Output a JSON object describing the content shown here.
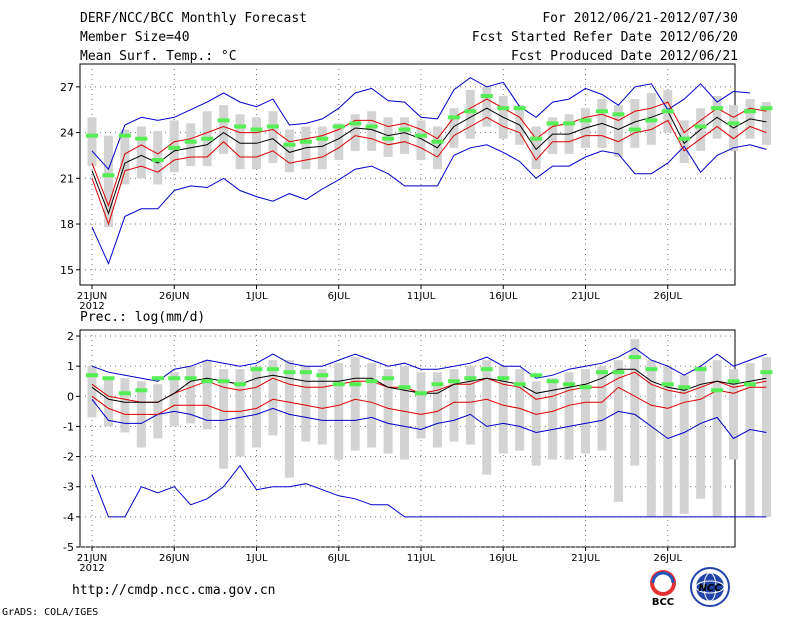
{
  "header": {
    "title": "DERF/NCC/BCC Monthly Forecast",
    "member_size": "Member Size=40",
    "variable_top": "Mean Surf. Temp.: °C",
    "for_range": "For 2012/06/21-2012/07/30",
    "started": "Fcst Started Refer Date 2012/06/20",
    "produced": "Fcst Produced Date 2012/06/21"
  },
  "footer": {
    "url": "http://cmdp.ncc.cma.gov.cn",
    "grads": "GrADS: COLA/IGES",
    "logo_bcc": "BCC",
    "logo_ncc": "NCC"
  },
  "colors": {
    "envelope": "#0000cc",
    "spread": "#dd0000",
    "mean": "#000000",
    "obs": "#55ee55",
    "box": "#d3d3d3"
  },
  "chart_data": [
    {
      "type": "line",
      "title": "Mean Surf. Temp.: °C",
      "ylim": [
        14,
        28.5
      ],
      "yticks": [
        15,
        18,
        21,
        24,
        27
      ],
      "x_tick_labels": [
        "21JUN",
        "26JUN",
        "1JUL",
        "6JUL",
        "11JUL",
        "16JUL",
        "21JUL",
        "26JUL"
      ],
      "x_year_label": "2012",
      "days": 40,
      "series": [
        {
          "name": "max",
          "values": [
            22.8,
            21.6,
            24.5,
            25.0,
            24.8,
            25.0,
            25.5,
            26.0,
            26.6,
            26.0,
            25.7,
            26.2,
            24.5,
            24.6,
            24.9,
            25.6,
            26.6,
            26.9,
            26.1,
            26.0,
            25.0,
            24.9,
            26.8,
            27.6,
            27.0,
            27.3,
            25.7,
            25.0,
            26.0,
            26.2,
            26.9,
            26.5,
            25.8,
            27.0,
            27.2,
            25.5,
            26.2,
            27.2,
            26.0,
            26.7,
            26.6
          ]
        },
        {
          "name": "upper",
          "values": [
            22.0,
            19.2,
            22.6,
            23.2,
            22.6,
            23.4,
            23.6,
            24.0,
            24.4,
            24.0,
            24.0,
            24.2,
            23.4,
            23.6,
            23.8,
            24.2,
            24.8,
            24.8,
            24.4,
            24.6,
            24.2,
            23.6,
            25.0,
            25.6,
            26.2,
            25.6,
            25.0,
            23.6,
            24.4,
            24.6,
            25.0,
            25.2,
            24.8,
            25.4,
            25.6,
            26.0,
            24.0,
            24.8,
            25.6,
            25.0,
            25.6,
            25.4
          ]
        },
        {
          "name": "mean",
          "values": [
            21.5,
            18.7,
            22.0,
            22.5,
            22.0,
            22.8,
            23.0,
            23.2,
            24.0,
            23.3,
            23.3,
            23.6,
            22.7,
            23.0,
            23.1,
            23.6,
            24.3,
            24.2,
            23.8,
            24.0,
            23.6,
            23.0,
            24.4,
            25.0,
            25.6,
            25.0,
            24.5,
            22.9,
            23.9,
            23.9,
            24.3,
            24.6,
            24.2,
            24.7,
            25.0,
            25.4,
            23.3,
            24.2,
            25.0,
            24.3,
            24.9,
            24.7
          ]
        },
        {
          "name": "lower",
          "values": [
            21.0,
            18.0,
            21.5,
            21.8,
            21.4,
            22.2,
            22.4,
            22.4,
            23.4,
            22.4,
            22.4,
            22.8,
            22.0,
            22.2,
            22.4,
            23.0,
            23.8,
            23.6,
            23.2,
            23.4,
            23.0,
            22.4,
            23.8,
            24.4,
            25.0,
            24.4,
            24.0,
            22.2,
            23.4,
            23.4,
            23.8,
            23.8,
            23.4,
            24.0,
            24.2,
            24.8,
            22.8,
            23.6,
            24.4,
            23.6,
            24.4,
            24.0
          ]
        },
        {
          "name": "min",
          "values": [
            17.8,
            15.4,
            18.5,
            19.0,
            19.0,
            20.2,
            20.5,
            20.4,
            21.0,
            20.2,
            19.8,
            19.5,
            20.0,
            19.6,
            20.3,
            20.9,
            21.6,
            21.8,
            21.3,
            20.5,
            20.5,
            20.5,
            22.5,
            23.0,
            23.2,
            22.7,
            22.1,
            21.0,
            21.8,
            21.8,
            22.4,
            22.8,
            22.6,
            21.3,
            21.3,
            22.0,
            23.1,
            21.4,
            22.5,
            23.0,
            23.2,
            22.9
          ]
        },
        {
          "name": "box_top",
          "values": [
            25.0,
            23.8,
            24.2,
            24.4,
            24.1,
            24.8,
            24.6,
            25.4,
            25.8,
            25.2,
            25.0,
            25.4,
            24.2,
            24.4,
            24.4,
            24.6,
            25.2,
            25.4,
            25.0,
            25.0,
            24.8,
            24.4,
            25.6,
            26.8,
            27.0,
            26.4,
            25.8,
            24.4,
            25.0,
            25.2,
            25.6,
            26.2,
            25.8,
            26.2,
            26.6,
            26.8,
            24.8,
            25.6,
            26.4,
            25.8,
            26.2,
            26.0
          ]
        },
        {
          "name": "box_bottom",
          "values": [
            21.8,
            17.8,
            20.6,
            21.0,
            20.6,
            21.4,
            21.8,
            21.8,
            22.6,
            21.6,
            21.6,
            22.0,
            21.4,
            21.6,
            21.6,
            22.2,
            22.8,
            22.8,
            22.4,
            22.6,
            22.2,
            21.6,
            23.0,
            23.6,
            24.4,
            23.6,
            23.2,
            21.6,
            22.6,
            22.6,
            23.0,
            23.0,
            22.4,
            23.0,
            23.2,
            24.0,
            22.0,
            22.8,
            23.6,
            22.8,
            23.6,
            23.2
          ]
        },
        {
          "name": "obs",
          "values": [
            23.8,
            21.2,
            23.8,
            23.6,
            22.2,
            23.0,
            23.4,
            23.6,
            24.8,
            24.4,
            24.2,
            24.4,
            23.2,
            23.4,
            23.6,
            24.4,
            24.6,
            24.4,
            23.6,
            24.2,
            23.8,
            23.4,
            25.0,
            25.4,
            26.4,
            25.6,
            25.6,
            23.6,
            24.6,
            24.6,
            24.8,
            25.4,
            25.2,
            24.2,
            24.8,
            25.4,
            23.6,
            24.4,
            25.6,
            24.6,
            25.4,
            25.6
          ]
        }
      ]
    },
    {
      "type": "line",
      "title": "Prec.: log(mm/d)",
      "ylim": [
        -5,
        2.2
      ],
      "yticks": [
        -5,
        -4,
        -3,
        -2,
        -1,
        0,
        1,
        2
      ],
      "x_tick_labels": [
        "21JUN",
        "26JUN",
        "1JUL",
        "6JUL",
        "11JUL",
        "16JUL",
        "21JUL",
        "26JUL"
      ],
      "x_year_label": "2012",
      "days": 40,
      "series": [
        {
          "name": "max",
          "values": [
            1.0,
            0.8,
            0.7,
            0.6,
            0.5,
            0.9,
            1.0,
            1.2,
            1.1,
            1.0,
            1.1,
            1.4,
            1.1,
            1.0,
            1.0,
            1.2,
            1.4,
            1.2,
            1.0,
            1.1,
            0.9,
            0.9,
            1.0,
            1.1,
            1.3,
            1.0,
            1.0,
            0.6,
            0.7,
            0.9,
            1.0,
            1.1,
            1.3,
            1.6,
            1.2,
            1.0,
            0.7,
            1.0,
            1.4,
            1.0,
            1.2,
            1.4
          ]
        },
        {
          "name": "upper",
          "values": [
            0.4,
            0.0,
            -0.1,
            -0.2,
            -0.2,
            0.1,
            0.3,
            0.5,
            0.3,
            0.2,
            0.3,
            0.6,
            0.4,
            0.3,
            0.3,
            0.4,
            0.5,
            0.5,
            0.3,
            0.3,
            0.1,
            0.2,
            0.4,
            0.4,
            0.6,
            0.4,
            0.3,
            -0.1,
            0.0,
            0.2,
            0.3,
            0.3,
            0.6,
            0.8,
            0.4,
            0.2,
            0.1,
            0.3,
            0.5,
            0.3,
            0.4,
            0.5
          ]
        },
        {
          "name": "mean",
          "values": [
            0.3,
            -0.1,
            -0.2,
            -0.2,
            -0.2,
            0.1,
            0.5,
            0.6,
            0.5,
            0.4,
            0.6,
            0.7,
            0.6,
            0.5,
            0.5,
            0.5,
            0.6,
            0.6,
            0.3,
            0.2,
            0.1,
            0.1,
            0.4,
            0.5,
            0.6,
            0.5,
            0.4,
            0.1,
            0.2,
            0.3,
            0.4,
            0.6,
            0.9,
            0.9,
            0.5,
            0.3,
            0.2,
            0.4,
            0.5,
            0.4,
            0.5,
            0.6
          ]
        },
        {
          "name": "lower",
          "values": [
            0.0,
            -0.4,
            -0.6,
            -0.6,
            -0.6,
            -0.3,
            -0.3,
            -0.3,
            -0.5,
            -0.5,
            -0.4,
            -0.1,
            -0.2,
            -0.3,
            -0.4,
            -0.3,
            -0.1,
            -0.2,
            -0.4,
            -0.5,
            -0.6,
            -0.5,
            -0.2,
            -0.2,
            -0.1,
            -0.3,
            -0.4,
            -0.6,
            -0.5,
            -0.3,
            -0.2,
            -0.2,
            0.3,
            0.0,
            -0.3,
            -0.4,
            -0.2,
            -0.1,
            0.2,
            0.1,
            0.3,
            0.3
          ]
        },
        {
          "name": "min",
          "values": [
            -0.1,
            -0.8,
            -0.9,
            -0.9,
            -0.6,
            -0.5,
            -0.6,
            -0.8,
            -0.8,
            -0.7,
            -0.6,
            -0.4,
            -0.6,
            -0.7,
            -0.8,
            -0.8,
            -0.8,
            -0.7,
            -0.9,
            -1.0,
            -1.1,
            -0.9,
            -0.8,
            -0.6,
            -1.0,
            -0.9,
            -1.0,
            -1.2,
            -1.1,
            -1.0,
            -0.9,
            -0.8,
            -0.5,
            -0.6,
            -1.0,
            -1.4,
            -1.2,
            -0.9,
            -0.7,
            -1.4,
            -1.1,
            -1.2
          ]
        },
        {
          "name": "far_min",
          "values": [
            -2.6,
            -4.0,
            -4.0,
            -3.0,
            -3.2,
            -3.0,
            -3.6,
            -3.4,
            -3.0,
            -2.3,
            -3.1,
            -3.0,
            -3.0,
            -2.9,
            -3.1,
            -3.3,
            -3.4,
            -3.6,
            -3.6,
            -4.0,
            -4.0,
            -4.0,
            -4.0,
            -4.0,
            -4.0,
            -4.0,
            -4.0,
            -4.0,
            -4.0,
            -4.0,
            -4.0,
            -4.0,
            -4.0,
            -4.0,
            -4.0,
            -4.0,
            -4.0,
            -4.0,
            -4.0,
            -4.0,
            -4.0,
            -4.0
          ]
        },
        {
          "name": "box_top",
          "values": [
            1.0,
            0.6,
            0.6,
            0.5,
            0.4,
            0.8,
            1.0,
            1.2,
            0.9,
            0.9,
            1.0,
            1.2,
            1.2,
            1.0,
            0.9,
            1.1,
            1.3,
            1.1,
            0.9,
            1.0,
            0.8,
            0.8,
            0.9,
            1.0,
            1.2,
            1.0,
            0.9,
            0.5,
            0.6,
            0.8,
            0.9,
            1.0,
            1.2,
            1.9,
            1.2,
            1.0,
            0.7,
            1.0,
            1.2,
            0.9,
            1.1,
            1.3
          ]
        },
        {
          "name": "box_bottom",
          "values": [
            -0.7,
            -1.0,
            -1.2,
            -1.7,
            -1.4,
            -1.0,
            -0.9,
            -1.1,
            -2.4,
            -2.0,
            -1.7,
            -1.3,
            -2.7,
            -1.5,
            -1.6,
            -2.1,
            -1.8,
            -1.7,
            -1.9,
            -2.1,
            -1.4,
            -1.7,
            -1.5,
            -1.6,
            -2.6,
            -1.9,
            -1.8,
            -2.3,
            -2.1,
            -2.1,
            -1.9,
            -1.8,
            -3.5,
            -2.3,
            -4.0,
            -4.0,
            -3.9,
            -3.4,
            -4.0,
            -2.1,
            -4.0,
            -4.0
          ]
        },
        {
          "name": "obs",
          "values": [
            0.7,
            0.6,
            0.1,
            0.2,
            0.6,
            0.6,
            0.6,
            0.5,
            0.5,
            0.4,
            0.9,
            0.9,
            0.8,
            0.8,
            0.7,
            0.4,
            0.4,
            0.5,
            0.6,
            0.3,
            0.1,
            0.4,
            0.5,
            0.6,
            0.9,
            0.6,
            0.4,
            0.7,
            0.5,
            0.4,
            0.3,
            0.8,
            0.8,
            1.3,
            0.9,
            0.4,
            0.3,
            0.9,
            0.2,
            0.5,
            0.4,
            0.8
          ]
        }
      ]
    }
  ]
}
